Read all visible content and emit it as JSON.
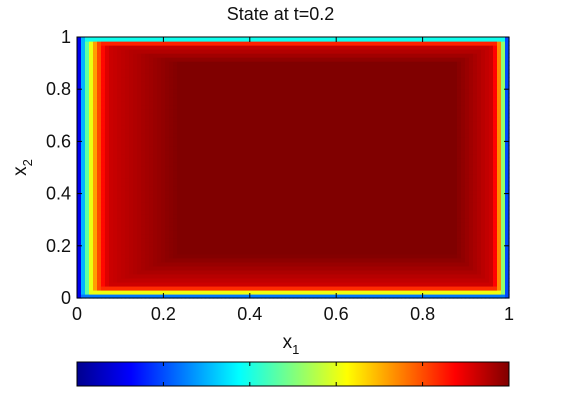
{
  "chart_data": {
    "type": "heatmap",
    "title": "State at t=0.2",
    "xlabel": {
      "base": "x",
      "sub": "1"
    },
    "ylabel": {
      "base": "x",
      "sub": "2"
    },
    "xlim": [
      0,
      1
    ],
    "ylim": [
      0,
      1
    ],
    "x_ticks": [
      "0",
      "0.2",
      "0.4",
      "0.6",
      "0.8",
      "1"
    ],
    "y_ticks": [
      "0",
      "0.2",
      "0.4",
      "0.6",
      "0.8",
      "1"
    ],
    "x_tick_values": [
      0,
      0.2,
      0.4,
      0.6,
      0.8,
      1
    ],
    "y_tick_values": [
      0,
      0.2,
      0.4,
      0.6,
      0.8,
      1
    ],
    "colormap": "jet",
    "colorbar": {
      "orientation": "horizontal",
      "position": "bottom",
      "tick_labels": false,
      "ticks": 5
    },
    "field": {
      "description_free": true,
      "boundary_value": 0,
      "interior_value": 1,
      "edge_width": {
        "left": 0.085,
        "right": 0.045,
        "bottom": 0.06,
        "top": 0.035
      }
    },
    "grid": false
  }
}
